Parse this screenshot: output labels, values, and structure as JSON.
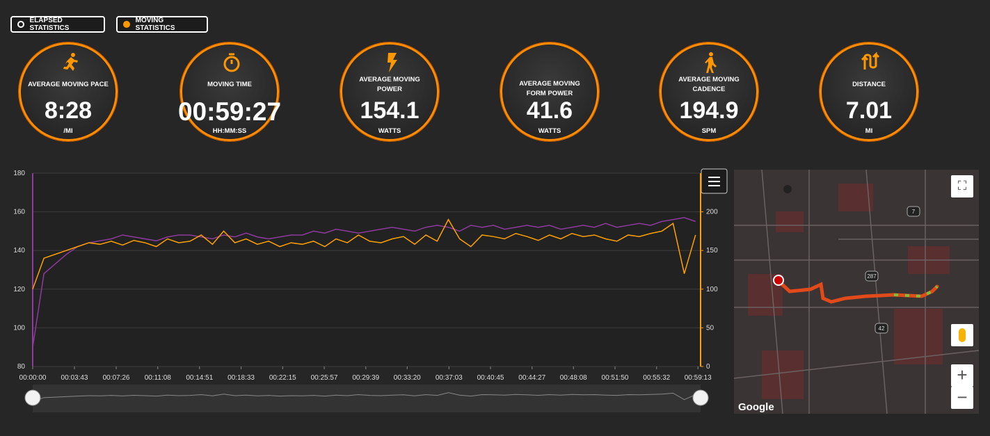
{
  "toggles": [
    {
      "label": "ELAPSED STATISTICS",
      "selected": false
    },
    {
      "label": "MOVING STATISTICS",
      "selected": true
    }
  ],
  "stats": [
    {
      "label": "AVERAGE MOVING PACE",
      "value": "8:28",
      "unit": "/MI"
    },
    {
      "label": "MOVING TIME",
      "value": "00:59:27",
      "unit": "HH:MM:SS"
    },
    {
      "label": "AVERAGE MOVING POWER",
      "value": "154.1",
      "unit": "WATTS"
    },
    {
      "label": "AVERAGE MOVING FORM POWER",
      "value": "41.6",
      "unit": "WATTS"
    },
    {
      "label": "AVERAGE MOVING CADENCE",
      "value": "194.9",
      "unit": "SPM"
    },
    {
      "label": "DISTANCE",
      "value": "7.01",
      "unit": "MI"
    }
  ],
  "chart_data": {
    "type": "line",
    "x": [
      0,
      60,
      120,
      180,
      240,
      300,
      360,
      420,
      480,
      540,
      600,
      660,
      720,
      780,
      840,
      900,
      960,
      1020,
      1080,
      1140,
      1200,
      1260,
      1320,
      1380,
      1440,
      1500,
      1560,
      1620,
      1680,
      1740,
      1800,
      1860,
      1920,
      1980,
      2040,
      2100,
      2160,
      2220,
      2280,
      2340,
      2400,
      2460,
      2520,
      2580,
      2640,
      2700,
      2760,
      2820,
      2880,
      2940,
      3000,
      3060,
      3120,
      3180,
      3240,
      3300,
      3360,
      3420,
      3480,
      3540
    ],
    "xlim": [
      0,
      3567
    ],
    "xticks": [
      {
        "value": 0,
        "label": "00:00:00"
      },
      {
        "value": 223,
        "label": "00:03:43"
      },
      {
        "value": 446,
        "label": "00:07:26"
      },
      {
        "value": 668,
        "label": "00:11:08"
      },
      {
        "value": 891,
        "label": "00:14:51"
      },
      {
        "value": 1113,
        "label": "00:18:33"
      },
      {
        "value": 1335,
        "label": "00:22:15"
      },
      {
        "value": 1557,
        "label": "00:25:57"
      },
      {
        "value": 1779,
        "label": "00:29:39"
      },
      {
        "value": 2000,
        "label": "00:33:20"
      },
      {
        "value": 2223,
        "label": "00:37:03"
      },
      {
        "value": 2445,
        "label": "00:40:45"
      },
      {
        "value": 2667,
        "label": "00:44:27"
      },
      {
        "value": 2888,
        "label": "00:48:08"
      },
      {
        "value": 3110,
        "label": "00:51:50"
      },
      {
        "value": 3332,
        "label": "00:55:32"
      },
      {
        "value": 3553,
        "label": "00:59:13"
      }
    ],
    "ylim": [
      80,
      180
    ],
    "yticks": [
      80,
      100,
      120,
      140,
      160,
      180
    ],
    "y2lim": [
      0,
      250
    ],
    "y2ticks": [
      0,
      50,
      100,
      150,
      200
    ],
    "grid": true,
    "series": [
      {
        "color": "#8e3a9e",
        "values": [
          90,
          128,
          133,
          138,
          142,
          144,
          145,
          146,
          148,
          147,
          146,
          145,
          147,
          148,
          148,
          147,
          146,
          148,
          147,
          149,
          147,
          146,
          147,
          148,
          148,
          150,
          149,
          151,
          150,
          149,
          150,
          151,
          152,
          151,
          150,
          152,
          153,
          152,
          150,
          153,
          152,
          153,
          151,
          152,
          153,
          152,
          153,
          151,
          152,
          153,
          152,
          154,
          152,
          153,
          154,
          153,
          155,
          156,
          157,
          155
        ]
      },
      {
        "color": "#ffa000",
        "axis": "y2",
        "values": [
          100,
          140,
          145,
          150,
          155,
          160,
          158,
          162,
          157,
          163,
          160,
          155,
          165,
          160,
          162,
          170,
          158,
          175,
          160,
          165,
          158,
          162,
          155,
          160,
          158,
          162,
          155,
          165,
          160,
          170,
          162,
          160,
          165,
          168,
          158,
          170,
          162,
          190,
          165,
          155,
          170,
          168,
          165,
          172,
          168,
          163,
          170,
          165,
          172,
          168,
          170,
          165,
          162,
          170,
          168,
          172,
          175,
          185,
          120,
          170
        ]
      }
    ]
  },
  "map": {
    "attribution": "Google",
    "road_labels": [
      "7",
      "287",
      "42"
    ]
  }
}
